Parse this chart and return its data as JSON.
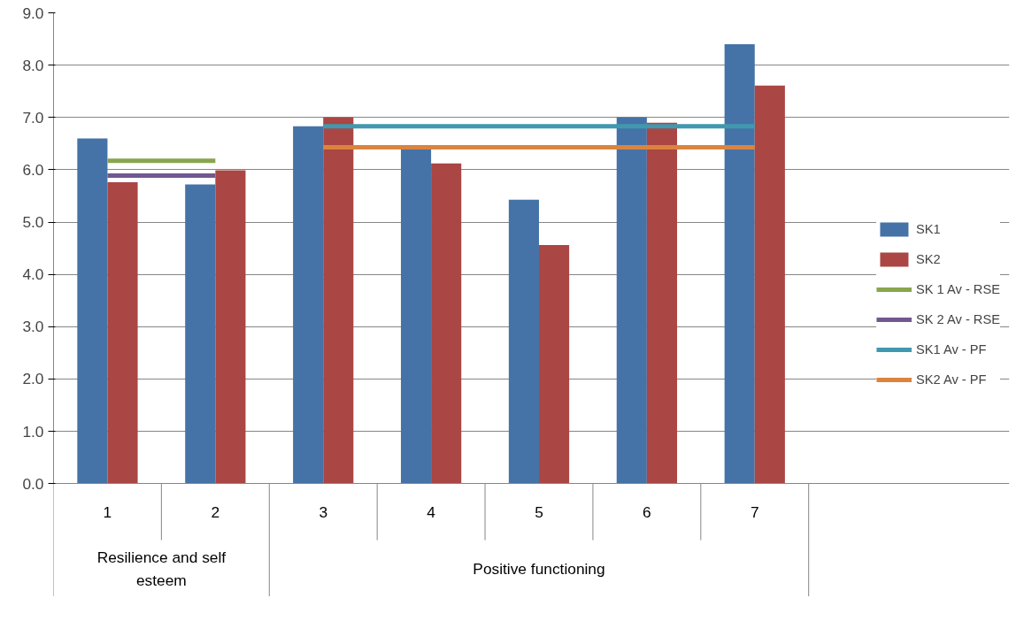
{
  "chart_data": {
    "type": "bar",
    "categories": [
      "1",
      "2",
      "3",
      "4",
      "5",
      "6",
      "7"
    ],
    "series": [
      {
        "name": "SK1",
        "color": "#4573a7",
        "values": [
          6.6,
          5.72,
          6.83,
          6.4,
          5.43,
          7.0,
          8.4
        ]
      },
      {
        "name": "SK2",
        "color": "#aa4643",
        "values": [
          5.76,
          5.99,
          7.0,
          6.12,
          4.56,
          6.9,
          7.61
        ]
      },
      {
        "name": "SK 1 Av - RSE",
        "type": "line",
        "color": "#89a54e",
        "values": [
          6.17,
          6.17,
          null,
          null,
          null,
          null,
          null
        ]
      },
      {
        "name": "SK 2 Av - RSE",
        "type": "line",
        "color": "#71588f",
        "values": [
          5.89,
          5.89,
          null,
          null,
          null,
          null,
          null
        ]
      },
      {
        "name": "SK1 Av - PF",
        "type": "line",
        "color": "#4198af",
        "values": [
          null,
          null,
          6.83,
          6.83,
          6.83,
          6.83,
          6.83
        ]
      },
      {
        "name": "SK2 Av - PF",
        "type": "line",
        "color": "#db843d",
        "values": [
          null,
          null,
          6.43,
          6.43,
          6.43,
          6.43,
          6.43
        ]
      }
    ],
    "annotations": [
      "Resilience and self esteem",
      "Positive functioning"
    ],
    "ylim": [
      0,
      9
    ],
    "yticks": [
      {
        "value": 0,
        "label": "0.0"
      },
      {
        "value": 1,
        "label": "1.0"
      },
      {
        "value": 2,
        "label": "2.0"
      },
      {
        "value": 3,
        "label": "3.0"
      },
      {
        "value": 4,
        "label": "4.0"
      },
      {
        "value": 5,
        "label": "5.0"
      },
      {
        "value": 6,
        "label": "6.0"
      },
      {
        "value": 7,
        "label": "7.0"
      },
      {
        "value": 8,
        "label": "8.0"
      },
      {
        "value": 9,
        "label": "9.0"
      }
    ],
    "grid": "y",
    "legend": "right"
  }
}
